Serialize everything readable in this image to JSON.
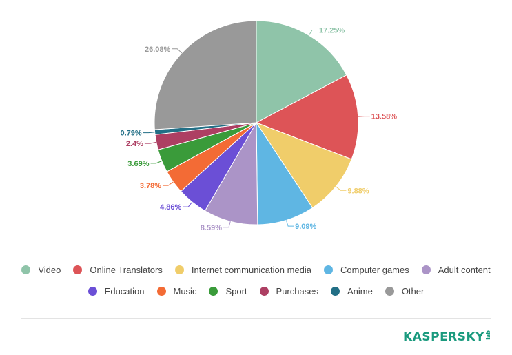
{
  "chart_data": {
    "type": "pie",
    "title": "",
    "slices": [
      {
        "label": "Video",
        "value": 17.25,
        "text": "17.25%",
        "color": "#8fc4a9"
      },
      {
        "label": "Online Translators",
        "value": 13.58,
        "text": "13.58%",
        "color": "#dd5457"
      },
      {
        "label": "Internet communication media",
        "value": 9.88,
        "text": "9.88%",
        "color": "#f0cd6a"
      },
      {
        "label": "Computer games",
        "value": 9.09,
        "text": "9.09%",
        "color": "#5fb6e3"
      },
      {
        "label": "Adult content",
        "value": 8.59,
        "text": "8.59%",
        "color": "#ab94c7"
      },
      {
        "label": "Education",
        "value": 4.86,
        "text": "4.86%",
        "color": "#6b4fd6"
      },
      {
        "label": "Music",
        "value": 3.78,
        "text": "3.78%",
        "color": "#f36b35"
      },
      {
        "label": "Sport",
        "value": 3.69,
        "text": "3.69%",
        "color": "#3a9b3a"
      },
      {
        "label": "Purchases",
        "value": 2.4,
        "text": "2.4%",
        "color": "#ad3f63"
      },
      {
        "label": "Anime",
        "value": 0.79,
        "text": "0.79%",
        "color": "#226f86"
      },
      {
        "label": "Other",
        "value": 26.08,
        "text": "26.08%",
        "color": "#999999"
      }
    ],
    "legend_placement": "bottom"
  },
  "legend": {
    "row1": [
      {
        "label": "Video",
        "color": "#8fc4a9"
      },
      {
        "label": "Online Translators",
        "color": "#dd5457"
      },
      {
        "label": "Internet communication media",
        "color": "#f0cd6a"
      },
      {
        "label": "Computer games",
        "color": "#5fb6e3"
      },
      {
        "label": "Adult content",
        "color": "#ab94c7"
      }
    ],
    "row2": [
      {
        "label": "Education",
        "color": "#6b4fd6"
      },
      {
        "label": "Music",
        "color": "#f36b35"
      },
      {
        "label": "Sport",
        "color": "#3a9b3a"
      },
      {
        "label": "Purchases",
        "color": "#ad3f63"
      },
      {
        "label": "Anime",
        "color": "#226f86"
      },
      {
        "label": "Other",
        "color": "#999999"
      }
    ]
  },
  "footer": {
    "logo_text": "KASPERSKY",
    "logo_suffix": "lab",
    "brand_color": "#1a9a7e"
  }
}
